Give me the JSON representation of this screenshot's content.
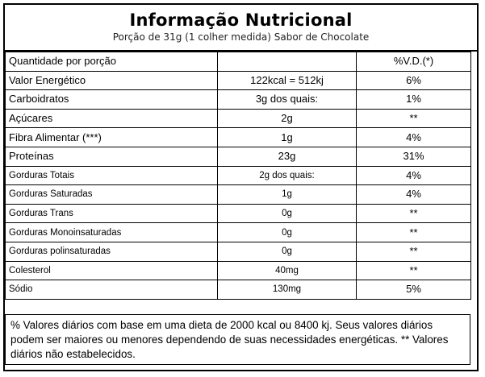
{
  "header": {
    "title": "Informação Nutricional",
    "subtitle": "Porção de 31g (1 colher medida) Sabor de Chocolate"
  },
  "table": {
    "header_row": {
      "label": "Quantidade por porção",
      "value": "",
      "vd": "%V.D.(*)"
    },
    "rows": [
      {
        "label": "Valor Energético",
        "value": "122kcal = 512kj",
        "vd": "6%",
        "small": false
      },
      {
        "label": "Carboidratos",
        "value": "3g dos quais:",
        "vd": "1%",
        "small": false
      },
      {
        "label": "Açúcares",
        "value": "2g",
        "vd": "**",
        "small": false
      },
      {
        "label": "Fibra Alimentar (***)",
        "value": "1g",
        "vd": "4%",
        "small": false
      },
      {
        "label": "Proteínas",
        "value": "23g",
        "vd": "31%",
        "small": false
      },
      {
        "label": "Gorduras Totais",
        "value": "2g dos quais:",
        "vd": "4%",
        "small": true
      },
      {
        "label": "Gorduras Saturadas",
        "value": "1g",
        "vd": "4%",
        "small": true
      },
      {
        "label": "Gorduras Trans",
        "value": "0g",
        "vd": "**",
        "small": true
      },
      {
        "label": "Gorduras Monoinsaturadas",
        "value": "0g",
        "vd": "**",
        "small": true
      },
      {
        "label": "Gorduras polinsaturadas",
        "value": "0g",
        "vd": "**",
        "small": true
      },
      {
        "label": "Colesterol",
        "value": "40mg",
        "vd": "**",
        "small": true
      },
      {
        "label": "Sódio",
        "value": "130mg",
        "vd": "5%",
        "small": true
      }
    ]
  },
  "footnote": "% Valores diários com base em uma dieta de 2000 kcal ou 8400 kj. Seus valores diários podem ser maiores ou menores dependendo de suas necessidades energéticas. ** Valores diários não estabelecidos."
}
